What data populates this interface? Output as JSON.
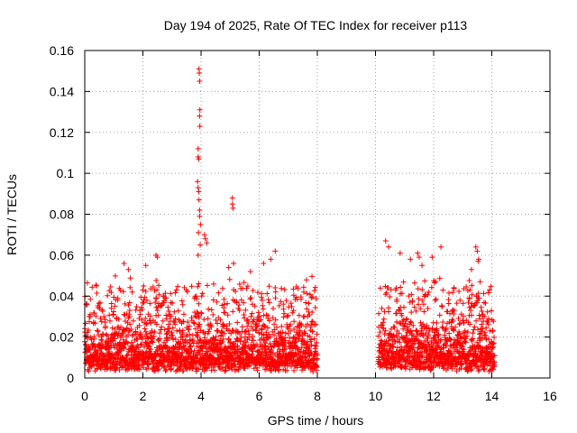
{
  "chart_data": {
    "type": "scatter",
    "title": "Day 194 of 2025, Rate Of TEC Index for receiver p113",
    "xlabel": "GPS time / hours",
    "ylabel": "ROTI / TECUs",
    "xlim": [
      0,
      16
    ],
    "ylim": [
      0,
      0.16
    ],
    "x_ticks": [
      0,
      2,
      4,
      6,
      8,
      10,
      12,
      14,
      16
    ],
    "x_tick_labels": [
      "0",
      "2",
      "4",
      "6",
      "8",
      "10",
      "12",
      "14",
      "16"
    ],
    "y_ticks": [
      0,
      0.02,
      0.04,
      0.06,
      0.08,
      0.1,
      0.12,
      0.14,
      0.16
    ],
    "y_tick_labels": [
      "0",
      "0.02",
      "0.04",
      "0.06",
      "0.08",
      "0.1",
      "0.12",
      "0.14",
      "0.16"
    ],
    "grid": true,
    "marker": "+",
    "marker_color": "#ff0000",
    "series": [
      {
        "name": "ROTI",
        "color": "#ff0000",
        "segments": [
          {
            "x_start": 0.0,
            "x_end": 8.0,
            "baseline_min": 0.003,
            "typical_max": 0.03
          },
          {
            "x_start": 10.1,
            "x_end": 14.1,
            "baseline_min": 0.003,
            "typical_max": 0.03
          }
        ],
        "highlight_points": [
          [
            3.93,
            0.151
          ],
          [
            3.94,
            0.149
          ],
          [
            3.95,
            0.145
          ],
          [
            3.96,
            0.131
          ],
          [
            3.95,
            0.128
          ],
          [
            3.96,
            0.123
          ],
          [
            3.9,
            0.112
          ],
          [
            3.9,
            0.108
          ],
          [
            3.92,
            0.107
          ],
          [
            3.88,
            0.096
          ],
          [
            3.9,
            0.093
          ],
          [
            3.92,
            0.091
          ],
          [
            3.93,
            0.087
          ],
          [
            3.95,
            0.082
          ],
          [
            3.95,
            0.079
          ],
          [
            3.98,
            0.075
          ],
          [
            3.91,
            0.071
          ],
          [
            4.12,
            0.07
          ],
          [
            4.15,
            0.068
          ],
          [
            4.2,
            0.066
          ],
          [
            3.97,
            0.065
          ],
          [
            3.9,
            0.06
          ],
          [
            5.08,
            0.088
          ],
          [
            5.08,
            0.085
          ],
          [
            5.1,
            0.083
          ],
          [
            5.12,
            0.056
          ],
          [
            4.95,
            0.054
          ],
          [
            2.45,
            0.06
          ],
          [
            2.5,
            0.059
          ],
          [
            1.35,
            0.056
          ],
          [
            1.5,
            0.053
          ],
          [
            2.1,
            0.055
          ],
          [
            6.55,
            0.062
          ],
          [
            6.4,
            0.058
          ],
          [
            6.15,
            0.056
          ],
          [
            5.7,
            0.052
          ],
          [
            10.35,
            0.067
          ],
          [
            10.45,
            0.064
          ],
          [
            10.85,
            0.061
          ],
          [
            11.2,
            0.058
          ],
          [
            11.45,
            0.061
          ],
          [
            11.5,
            0.059
          ],
          [
            11.95,
            0.059
          ],
          [
            11.6,
            0.055
          ],
          [
            12.25,
            0.064
          ],
          [
            13.45,
            0.064
          ],
          [
            13.5,
            0.062
          ],
          [
            13.53,
            0.057
          ],
          [
            13.55,
            0.058
          ],
          [
            13.3,
            0.053
          ],
          [
            13.6,
            0.047
          ]
        ]
      }
    ]
  }
}
